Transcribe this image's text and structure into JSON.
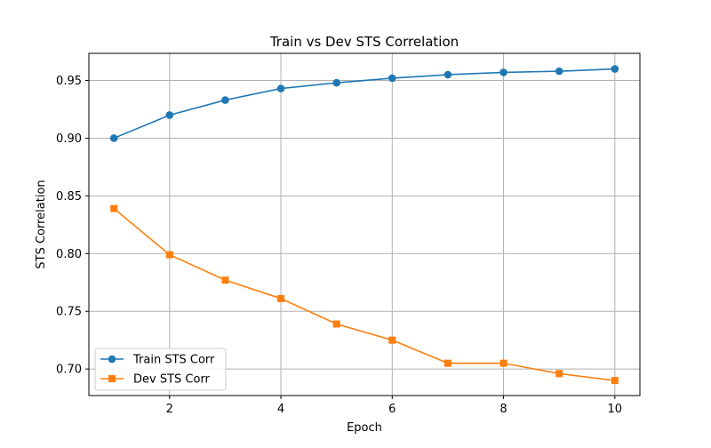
{
  "chart_data": {
    "type": "line",
    "title": "Train vs Dev STS Correlation",
    "xlabel": "Epoch",
    "ylabel": "STS Correlation",
    "xlim": [
      0.55,
      10.45
    ],
    "ylim": [
      0.677,
      0.9735
    ],
    "x_ticks": [
      2,
      4,
      6,
      8,
      10
    ],
    "y_ticks": [
      0.7,
      0.75,
      0.8,
      0.85,
      0.9,
      0.95
    ],
    "x_tick_labels": [
      "2",
      "4",
      "6",
      "8",
      "10"
    ],
    "y_tick_labels": [
      "0.70",
      "0.75",
      "0.80",
      "0.85",
      "0.90",
      "0.95"
    ],
    "grid": true,
    "legend_position": "lower-left",
    "x": [
      1,
      2,
      3,
      4,
      5,
      6,
      7,
      8,
      9,
      10
    ],
    "series": [
      {
        "name": "Train STS Corr",
        "color": "#1f77b4",
        "marker": "circle",
        "values": [
          0.9,
          0.92,
          0.933,
          0.943,
          0.948,
          0.952,
          0.955,
          0.957,
          0.958,
          0.96
        ]
      },
      {
        "name": "Dev STS Corr",
        "color": "#ff7f0e",
        "marker": "square",
        "values": [
          0.839,
          0.799,
          0.777,
          0.761,
          0.739,
          0.725,
          0.705,
          0.705,
          0.696,
          0.69
        ]
      }
    ]
  }
}
